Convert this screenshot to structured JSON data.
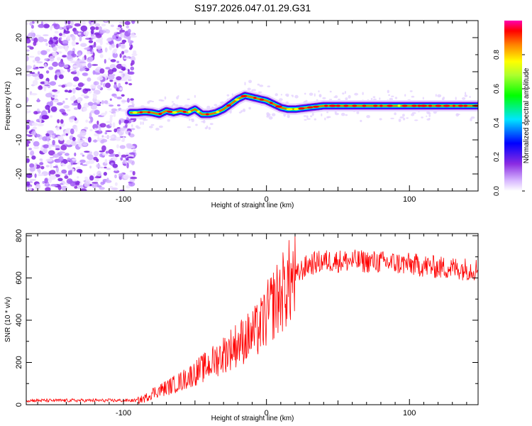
{
  "title": "S197.2026.047.01.29.G31",
  "chart_data": [
    {
      "type": "heatmap",
      "xlabel": "Height of straight line (km)",
      "ylabel": "Frequency (Hz)",
      "xlim": [
        -168,
        148
      ],
      "ylim": [
        -25,
        25
      ],
      "x_ticks": [
        "-100",
        "0",
        "100"
      ],
      "y_ticks": [
        "20",
        "10",
        "0",
        "-10",
        "-20"
      ],
      "x_tick_values": [
        -100,
        0,
        100
      ],
      "y_tick_values": [
        20,
        10,
        0,
        -10,
        -20
      ],
      "noise_region_x": [
        -168,
        -95
      ],
      "signal_track": {
        "x": [
          -95,
          -90,
          -85,
          -80,
          -75,
          -70,
          -65,
          -60,
          -55,
          -50,
          -45,
          -40,
          -35,
          -30,
          -25,
          -20,
          -15,
          -10,
          -5,
          0,
          5,
          10,
          15,
          20,
          30,
          40,
          60,
          80,
          100,
          120,
          140,
          148
        ],
        "y": [
          -2,
          -2,
          -1.8,
          -2,
          -2.5,
          -1.5,
          -2,
          -1.5,
          -2,
          -1,
          -2.5,
          -2.5,
          -2,
          -1,
          0.5,
          2,
          3,
          2.5,
          2,
          1.5,
          0.5,
          -0.5,
          -1,
          -1,
          -0.5,
          0,
          0,
          0,
          0,
          0,
          0,
          0
        ]
      },
      "colorbar": {
        "label": "Normalized spectral amplitude",
        "range": [
          0,
          1
        ],
        "ticks": [
          "0.0",
          "0.2",
          "0.4",
          "0.6",
          "0.8"
        ],
        "tick_values": [
          0,
          0.2,
          0.4,
          0.6,
          0.8
        ]
      }
    },
    {
      "type": "line",
      "xlabel": "Height of straight line (km)",
      "ylabel": "SNR (10 * v/v)",
      "xlim": [
        -168,
        148
      ],
      "ylim": [
        0,
        810
      ],
      "x_ticks": [
        "-100",
        "0",
        "100"
      ],
      "y_ticks": [
        "0",
        "200",
        "400",
        "600",
        "800"
      ],
      "x_tick_values": [
        -100,
        0,
        100
      ],
      "y_tick_values": [
        0,
        200,
        400,
        600,
        800
      ],
      "series_color": "#ff0000",
      "envelope": {
        "x": [
          -168,
          -120,
          -90,
          -85,
          -80,
          -70,
          -60,
          -50,
          -40,
          -30,
          -20,
          -10,
          -5,
          0,
          5,
          10,
          15,
          20,
          25,
          30,
          40,
          60,
          80,
          100,
          120,
          148
        ],
        "y": [
          20,
          20,
          20,
          30,
          55,
          80,
          110,
          150,
          190,
          240,
          290,
          330,
          360,
          420,
          480,
          520,
          570,
          600,
          640,
          665,
          680,
          680,
          675,
          665,
          650,
          640
        ]
      }
    }
  ]
}
